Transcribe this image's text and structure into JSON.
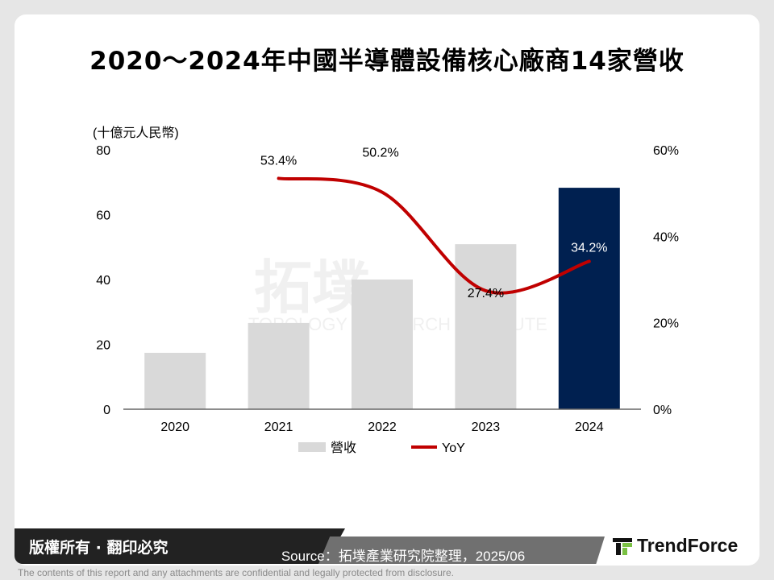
{
  "title": "2020～2024年中國半導體設備核心廠商14家營收",
  "chart_data": {
    "type": "bar+line",
    "categories": [
      "2020",
      "2021",
      "2022",
      "2023",
      "2024"
    ],
    "ylabel": "(十億元人民幣)",
    "ylim": [
      0,
      80
    ],
    "yticks": [
      "0",
      "20",
      "40",
      "60",
      "80"
    ],
    "y2lim": [
      0,
      60
    ],
    "y2ticks": [
      "0%",
      "20%",
      "40%",
      "60%"
    ],
    "grid": false,
    "legend_position": "bottom",
    "series": [
      {
        "name": "營收",
        "type": "bar",
        "values": [
          17.4,
          26.6,
          40.0,
          50.9,
          68.3
        ],
        "color": "#d9d9d9",
        "highlight_color": "#002050"
      },
      {
        "name": "YoY",
        "type": "line",
        "axis": "right",
        "values": [
          null,
          53.4,
          50.2,
          27.4,
          34.2
        ],
        "labels": [
          "",
          "53.4%",
          "50.2%",
          "27.4%",
          "34.2%"
        ],
        "color": "#c00000"
      }
    ]
  },
  "watermark": {
    "cn": "拓墣",
    "en": "TOPOLOGY RESEARCH INSTITUTE"
  },
  "footer": {
    "copyright": "版權所有 · 翻印必究",
    "source": "Source：拓墣產業研究院整理，2025/06",
    "logo": "TrendForce",
    "disclaimer": "The contents of this report and any attachments are confidential and legally protected from disclosure."
  }
}
